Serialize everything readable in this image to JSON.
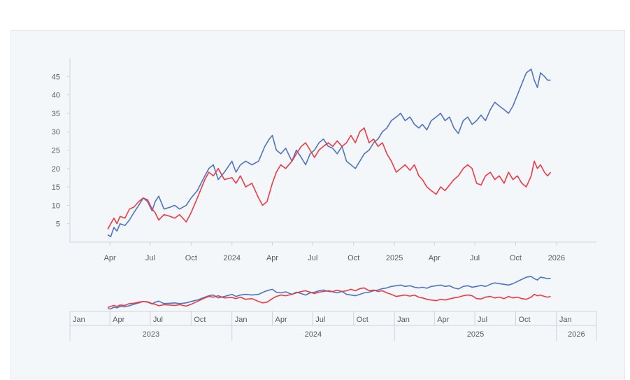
{
  "chart_data": {
    "type": "line",
    "title": "",
    "xlabel": "",
    "ylabel": "",
    "grid": false,
    "legend": "none",
    "x_range": [
      "2023-01-01",
      "2026-04-01"
    ],
    "y_range": [
      0,
      50
    ],
    "y_ticks": [
      5,
      10,
      15,
      20,
      25,
      30,
      35,
      40,
      45
    ],
    "x_ticks": [
      {
        "date": "2023-04-01",
        "label": "Apr"
      },
      {
        "date": "2023-07-01",
        "label": "Jul"
      },
      {
        "date": "2023-10-01",
        "label": "Oct"
      },
      {
        "date": "2024-01-01",
        "label": "2024"
      },
      {
        "date": "2024-04-01",
        "label": "Apr"
      },
      {
        "date": "2024-07-01",
        "label": "Jul"
      },
      {
        "date": "2024-10-01",
        "label": "Oct"
      },
      {
        "date": "2025-01-01",
        "label": "2025"
      },
      {
        "date": "2025-04-01",
        "label": "Apr"
      },
      {
        "date": "2025-07-01",
        "label": "Jul"
      },
      {
        "date": "2025-10-01",
        "label": "Oct"
      },
      {
        "date": "2026-01-01",
        "label": "2026"
      }
    ],
    "series": [
      {
        "color": "#4f73c3",
        "points": [
          [
            "2023-03-27",
            2
          ],
          [
            "2023-04-03",
            1.5
          ],
          [
            "2023-04-10",
            4
          ],
          [
            "2023-04-17",
            3
          ],
          [
            "2023-04-24",
            5
          ],
          [
            "2023-05-05",
            4.5
          ],
          [
            "2023-05-15",
            6
          ],
          [
            "2023-05-25",
            8
          ],
          [
            "2023-06-05",
            10
          ],
          [
            "2023-06-15",
            12
          ],
          [
            "2023-06-25",
            11
          ],
          [
            "2023-07-05",
            8.5
          ],
          [
            "2023-07-12",
            11
          ],
          [
            "2023-07-20",
            12.5
          ],
          [
            "2023-08-01",
            9
          ],
          [
            "2023-08-15",
            9.5
          ],
          [
            "2023-08-25",
            10
          ],
          [
            "2023-09-05",
            9
          ],
          [
            "2023-09-20",
            10
          ],
          [
            "2023-10-01",
            12
          ],
          [
            "2023-10-15",
            14
          ],
          [
            "2023-11-01",
            18
          ],
          [
            "2023-11-10",
            20
          ],
          [
            "2023-11-20",
            21
          ],
          [
            "2023-12-01",
            17
          ],
          [
            "2023-12-15",
            19
          ],
          [
            "2024-01-01",
            22
          ],
          [
            "2024-01-10",
            19
          ],
          [
            "2024-01-20",
            21
          ],
          [
            "2024-02-01",
            22
          ],
          [
            "2024-02-15",
            21
          ],
          [
            "2024-03-01",
            22
          ],
          [
            "2024-03-15",
            26
          ],
          [
            "2024-03-25",
            28
          ],
          [
            "2024-04-01",
            29
          ],
          [
            "2024-04-10",
            25
          ],
          [
            "2024-04-20",
            24
          ],
          [
            "2024-05-01",
            25.5
          ],
          [
            "2024-05-15",
            22
          ],
          [
            "2024-05-25",
            25
          ],
          [
            "2024-06-05",
            23
          ],
          [
            "2024-06-15",
            21
          ],
          [
            "2024-06-25",
            24
          ],
          [
            "2024-07-05",
            25
          ],
          [
            "2024-07-15",
            27
          ],
          [
            "2024-07-25",
            28
          ],
          [
            "2024-08-05",
            26
          ],
          [
            "2024-08-15",
            25.5
          ],
          [
            "2024-08-25",
            24
          ],
          [
            "2024-09-05",
            26
          ],
          [
            "2024-09-15",
            22
          ],
          [
            "2024-09-25",
            21
          ],
          [
            "2024-10-05",
            20
          ],
          [
            "2024-10-15",
            22
          ],
          [
            "2024-10-25",
            24
          ],
          [
            "2024-11-05",
            25
          ],
          [
            "2024-11-15",
            27
          ],
          [
            "2024-11-25",
            28
          ],
          [
            "2024-12-05",
            30
          ],
          [
            "2024-12-15",
            31
          ],
          [
            "2024-12-25",
            33
          ],
          [
            "2025-01-05",
            34
          ],
          [
            "2025-01-15",
            35
          ],
          [
            "2025-01-25",
            33
          ],
          [
            "2025-02-05",
            34
          ],
          [
            "2025-02-15",
            32
          ],
          [
            "2025-02-25",
            31
          ],
          [
            "2025-03-05",
            32
          ],
          [
            "2025-03-15",
            30.5
          ],
          [
            "2025-03-25",
            33
          ],
          [
            "2025-04-05",
            34
          ],
          [
            "2025-04-15",
            35
          ],
          [
            "2025-04-25",
            33
          ],
          [
            "2025-05-05",
            34
          ],
          [
            "2025-05-15",
            31
          ],
          [
            "2025-05-25",
            29.5
          ],
          [
            "2025-06-05",
            33
          ],
          [
            "2025-06-15",
            34
          ],
          [
            "2025-06-25",
            32
          ],
          [
            "2025-07-05",
            33
          ],
          [
            "2025-07-15",
            34.5
          ],
          [
            "2025-07-25",
            33
          ],
          [
            "2025-08-05",
            36
          ],
          [
            "2025-08-15",
            38
          ],
          [
            "2025-08-25",
            37
          ],
          [
            "2025-09-05",
            36
          ],
          [
            "2025-09-15",
            35
          ],
          [
            "2025-09-25",
            37
          ],
          [
            "2025-10-05",
            40
          ],
          [
            "2025-10-15",
            43
          ],
          [
            "2025-10-25",
            46
          ],
          [
            "2025-11-05",
            47
          ],
          [
            "2025-11-12",
            44
          ],
          [
            "2025-11-19",
            42
          ],
          [
            "2025-11-26",
            46
          ],
          [
            "2025-12-05",
            45
          ],
          [
            "2025-12-12",
            44
          ],
          [
            "2025-12-19",
            44
          ]
        ]
      },
      {
        "color": "#ee3a43",
        "points": [
          [
            "2023-03-27",
            3.5
          ],
          [
            "2023-04-03",
            5
          ],
          [
            "2023-04-10",
            6.5
          ],
          [
            "2023-04-17",
            5
          ],
          [
            "2023-04-24",
            7
          ],
          [
            "2023-05-05",
            6.5
          ],
          [
            "2023-05-15",
            9
          ],
          [
            "2023-05-25",
            9.5
          ],
          [
            "2023-06-05",
            11
          ],
          [
            "2023-06-15",
            12
          ],
          [
            "2023-06-25",
            11.5
          ],
          [
            "2023-07-05",
            9
          ],
          [
            "2023-07-12",
            8
          ],
          [
            "2023-07-20",
            6
          ],
          [
            "2023-08-01",
            7.5
          ],
          [
            "2023-08-15",
            7
          ],
          [
            "2023-08-25",
            6.5
          ],
          [
            "2023-09-05",
            7.5
          ],
          [
            "2023-09-20",
            5.5
          ],
          [
            "2023-10-01",
            8
          ],
          [
            "2023-10-15",
            12
          ],
          [
            "2023-11-01",
            17
          ],
          [
            "2023-11-10",
            19
          ],
          [
            "2023-11-20",
            18
          ],
          [
            "2023-12-01",
            20
          ],
          [
            "2023-12-15",
            17
          ],
          [
            "2024-01-01",
            17.5
          ],
          [
            "2024-01-10",
            16
          ],
          [
            "2024-01-20",
            18
          ],
          [
            "2024-02-01",
            15
          ],
          [
            "2024-02-15",
            16
          ],
          [
            "2024-03-01",
            12
          ],
          [
            "2024-03-10",
            10
          ],
          [
            "2024-03-20",
            11
          ],
          [
            "2024-04-01",
            16
          ],
          [
            "2024-04-10",
            19
          ],
          [
            "2024-04-20",
            21
          ],
          [
            "2024-05-01",
            20
          ],
          [
            "2024-05-15",
            22
          ],
          [
            "2024-05-25",
            24
          ],
          [
            "2024-06-05",
            26
          ],
          [
            "2024-06-15",
            27
          ],
          [
            "2024-06-25",
            25
          ],
          [
            "2024-07-05",
            23
          ],
          [
            "2024-07-15",
            25
          ],
          [
            "2024-07-25",
            26
          ],
          [
            "2024-08-05",
            27
          ],
          [
            "2024-08-15",
            26
          ],
          [
            "2024-08-25",
            27.5
          ],
          [
            "2024-09-05",
            26
          ],
          [
            "2024-09-15",
            27
          ],
          [
            "2024-09-25",
            29
          ],
          [
            "2024-10-05",
            27
          ],
          [
            "2024-10-15",
            30
          ],
          [
            "2024-10-25",
            31
          ],
          [
            "2024-11-05",
            27
          ],
          [
            "2024-11-15",
            28
          ],
          [
            "2024-11-25",
            26
          ],
          [
            "2024-12-05",
            27
          ],
          [
            "2024-12-15",
            24
          ],
          [
            "2024-12-25",
            22
          ],
          [
            "2025-01-05",
            19
          ],
          [
            "2025-01-15",
            20
          ],
          [
            "2025-01-25",
            21
          ],
          [
            "2025-02-05",
            19.5
          ],
          [
            "2025-02-15",
            21
          ],
          [
            "2025-02-25",
            18
          ],
          [
            "2025-03-05",
            17
          ],
          [
            "2025-03-15",
            15
          ],
          [
            "2025-03-25",
            14
          ],
          [
            "2025-04-05",
            13
          ],
          [
            "2025-04-15",
            15
          ],
          [
            "2025-04-25",
            14
          ],
          [
            "2025-05-05",
            15.5
          ],
          [
            "2025-05-15",
            17
          ],
          [
            "2025-05-25",
            18
          ],
          [
            "2025-06-05",
            20
          ],
          [
            "2025-06-15",
            21
          ],
          [
            "2025-06-25",
            20
          ],
          [
            "2025-07-05",
            16
          ],
          [
            "2025-07-15",
            15.5
          ],
          [
            "2025-07-25",
            18
          ],
          [
            "2025-08-05",
            19
          ],
          [
            "2025-08-15",
            17
          ],
          [
            "2025-08-25",
            18
          ],
          [
            "2025-09-05",
            16
          ],
          [
            "2025-09-15",
            19
          ],
          [
            "2025-09-25",
            17
          ],
          [
            "2025-10-05",
            18
          ],
          [
            "2025-10-15",
            16
          ],
          [
            "2025-10-25",
            15
          ],
          [
            "2025-11-05",
            18
          ],
          [
            "2025-11-12",
            22
          ],
          [
            "2025-11-19",
            20
          ],
          [
            "2025-11-26",
            21
          ],
          [
            "2025-12-05",
            19
          ],
          [
            "2025-12-12",
            18
          ],
          [
            "2025-12-19",
            19
          ]
        ]
      }
    ],
    "navigator": {
      "month_labels": [
        {
          "date": "2023-01-01",
          "label": "Jan"
        },
        {
          "date": "2023-04-01",
          "label": "Apr"
        },
        {
          "date": "2023-07-01",
          "label": "Jul"
        },
        {
          "date": "2023-10-01",
          "label": "Oct"
        },
        {
          "date": "2024-01-01",
          "label": "Jan"
        },
        {
          "date": "2024-04-01",
          "label": "Apr"
        },
        {
          "date": "2024-07-01",
          "label": "Jul"
        },
        {
          "date": "2024-10-01",
          "label": "Oct"
        },
        {
          "date": "2025-01-01",
          "label": "Jan"
        },
        {
          "date": "2025-04-01",
          "label": "Apr"
        },
        {
          "date": "2025-07-01",
          "label": "Jul"
        },
        {
          "date": "2025-10-01",
          "label": "Oct"
        },
        {
          "date": "2026-01-01",
          "label": "Jan"
        }
      ],
      "year_labels": [
        {
          "date": "2023-01-01",
          "label": "2023"
        },
        {
          "date": "2024-01-01",
          "label": "2024"
        },
        {
          "date": "2025-01-01",
          "label": "2025"
        },
        {
          "date": "2026-01-01",
          "label": "2026"
        }
      ]
    }
  }
}
